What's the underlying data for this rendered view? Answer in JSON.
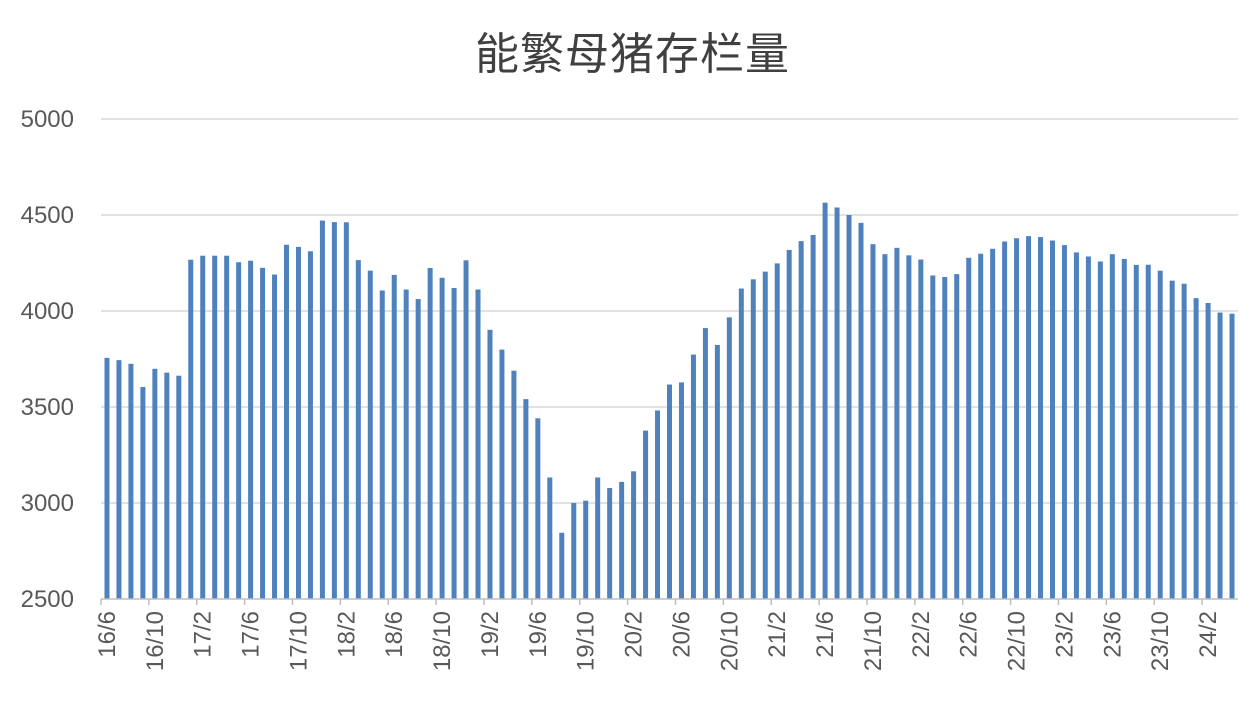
{
  "chart_data": {
    "type": "bar",
    "title": "能繁母猪存栏量",
    "xlabel": "",
    "ylabel": "",
    "ylim": [
      2500,
      5000
    ],
    "yticks": [
      2500,
      3000,
      3500,
      4000,
      4500,
      5000
    ],
    "grid": true,
    "bar_color": "#4F81BD",
    "categories": [
      "16/6",
      "16/7",
      "16/8",
      "16/9",
      "16/10",
      "16/11",
      "16/12",
      "17/1",
      "17/2",
      "17/3",
      "17/4",
      "17/5",
      "17/6",
      "17/7",
      "17/8",
      "17/9",
      "17/10",
      "17/11",
      "17/12",
      "18/1",
      "18/2",
      "18/3",
      "18/4",
      "18/5",
      "18/6",
      "18/7",
      "18/8",
      "18/9",
      "18/10",
      "18/11",
      "18/12",
      "19/1",
      "19/2",
      "19/3",
      "19/4",
      "19/5",
      "19/6",
      "19/7",
      "19/8",
      "19/9",
      "19/10",
      "19/11",
      "19/12",
      "20/1",
      "20/2",
      "20/3",
      "20/4",
      "20/5",
      "20/6",
      "20/7",
      "20/8",
      "20/9",
      "20/10",
      "20/11",
      "20/12",
      "21/1",
      "21/2",
      "21/3",
      "21/4",
      "21/5",
      "21/6",
      "21/7",
      "21/8",
      "21/9",
      "21/10",
      "21/11",
      "21/12",
      "22/1",
      "22/2",
      "22/3",
      "22/4",
      "22/5",
      "22/6",
      "22/7",
      "22/8",
      "22/9",
      "22/10",
      "22/11",
      "22/12",
      "23/1",
      "23/2",
      "23/3",
      "23/4",
      "23/5",
      "23/6",
      "23/7",
      "23/8",
      "23/9",
      "23/10",
      "23/11",
      "23/12",
      "24/1",
      "24/2",
      "24/3",
      "24/4"
    ],
    "tick_labels": [
      "16/6",
      "16/10",
      "17/2",
      "17/6",
      "17/10",
      "18/2",
      "18/6",
      "18/10",
      "19/2",
      "19/6",
      "19/10",
      "20/2",
      "20/6",
      "20/10",
      "21/2",
      "21/6",
      "21/10",
      "22/2",
      "22/6",
      "22/10",
      "23/2",
      "23/6",
      "23/10",
      "24/2"
    ],
    "values": [
      3756,
      3744,
      3725,
      3604,
      3699,
      3679,
      3663,
      4267,
      4288,
      4288,
      4288,
      4254,
      4262,
      4225,
      4190,
      4345,
      4334,
      4311,
      4471,
      4463,
      4462,
      4265,
      4210,
      4107,
      4188,
      4112,
      4062,
      4224,
      4173,
      4120,
      4264,
      4112,
      3902,
      3799,
      3689,
      3541,
      3441,
      3133,
      2845,
      3000,
      3012,
      3133,
      3078,
      3110,
      3165,
      3377,
      3482,
      3617,
      3628,
      3773,
      3911,
      3823,
      3967,
      4117,
      4165,
      4205,
      4248,
      4318,
      4364,
      4396,
      4564,
      4539,
      4500,
      4459,
      4348,
      4296,
      4329,
      4290,
      4268,
      4185,
      4177,
      4192,
      4277,
      4298,
      4324,
      4362,
      4379,
      4390,
      4385,
      4367,
      4343,
      4305,
      4284,
      4258,
      4296,
      4271,
      4240,
      4241,
      4210,
      4158,
      4142,
      4067,
      4042,
      3992,
      3986
    ]
  }
}
